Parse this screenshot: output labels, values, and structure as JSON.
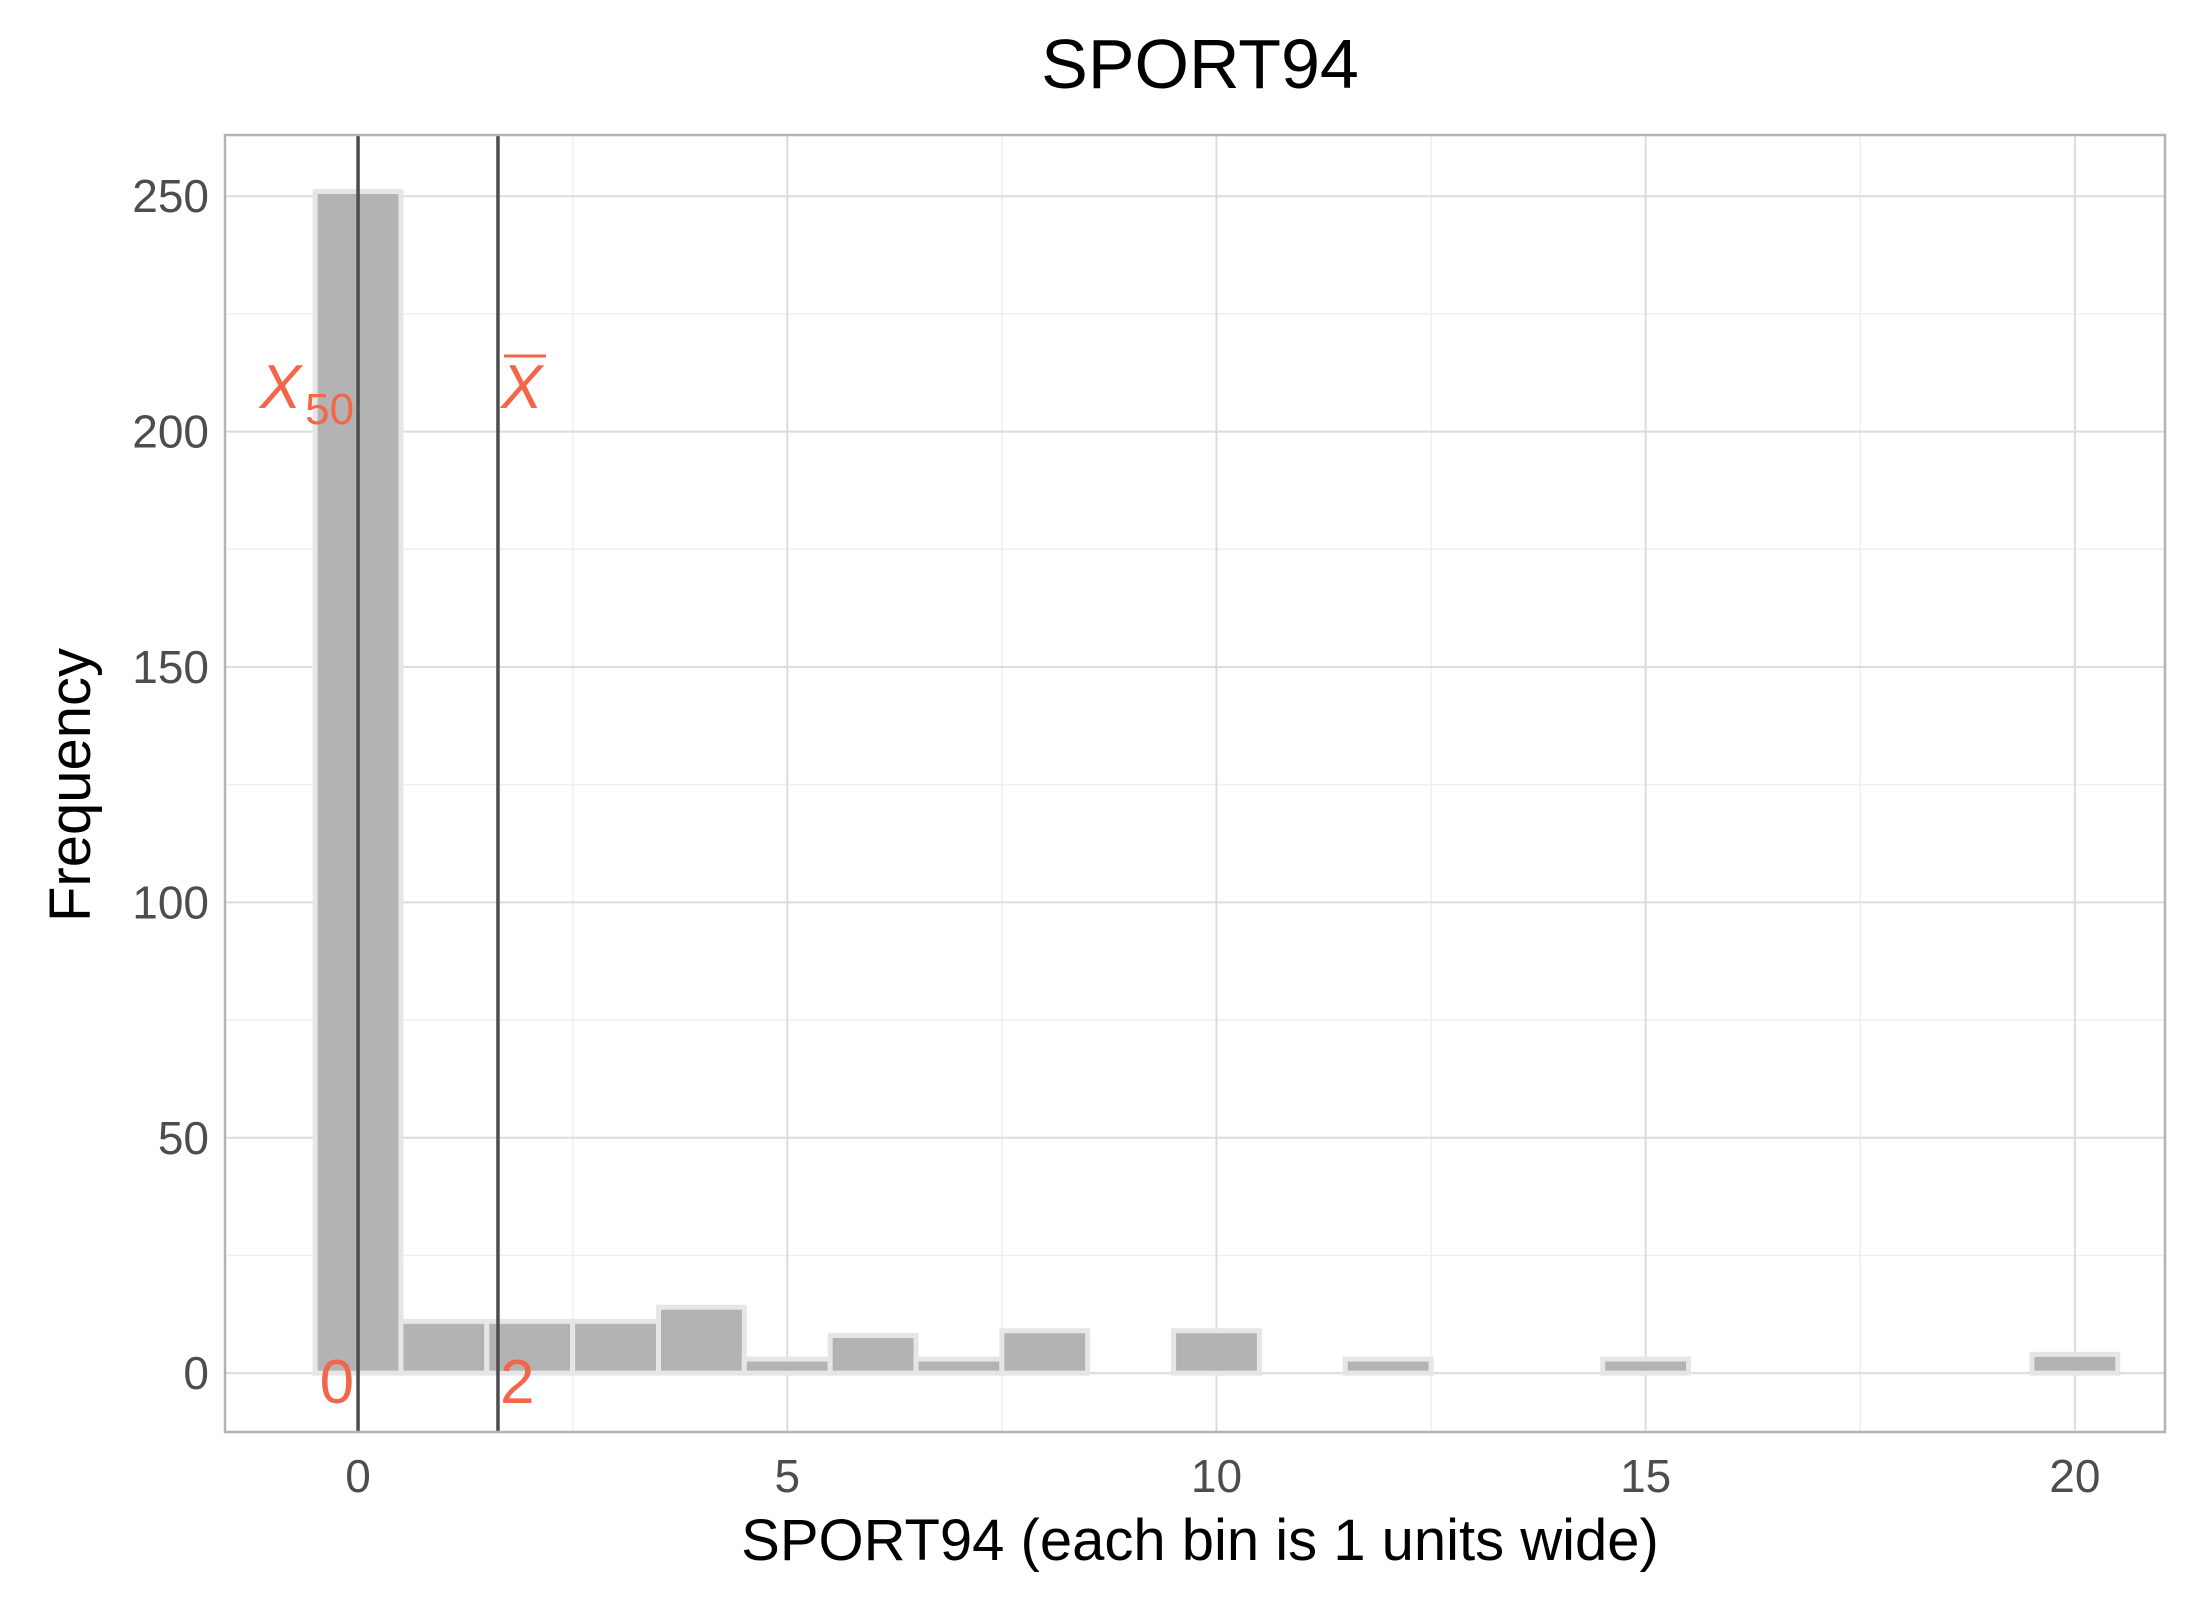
{
  "chart_data": {
    "type": "bar",
    "title": "SPORT94",
    "xlabel": "SPORT94 (each bin is 1 units wide)",
    "ylabel": "Frequency",
    "xlim": [
      -1.55,
      21.05
    ],
    "ylim": [
      -12.5,
      263
    ],
    "x_ticks": [
      0,
      5,
      10,
      15,
      20
    ],
    "y_ticks": [
      0,
      50,
      100,
      150,
      200,
      250
    ],
    "bin_width": 1,
    "bins": [
      {
        "x": 0,
        "count": 251
      },
      {
        "x": 1,
        "count": 11
      },
      {
        "x": 2,
        "count": 11
      },
      {
        "x": 3,
        "count": 11
      },
      {
        "x": 4,
        "count": 14
      },
      {
        "x": 5,
        "count": 3
      },
      {
        "x": 6,
        "count": 8
      },
      {
        "x": 7,
        "count": 3
      },
      {
        "x": 8,
        "count": 9
      },
      {
        "x": 9,
        "count": 0
      },
      {
        "x": 10,
        "count": 9
      },
      {
        "x": 11,
        "count": 0
      },
      {
        "x": 12,
        "count": 3
      },
      {
        "x": 13,
        "count": 0
      },
      {
        "x": 14,
        "count": 0
      },
      {
        "x": 15,
        "count": 3
      },
      {
        "x": 16,
        "count": 0
      },
      {
        "x": 17,
        "count": 0
      },
      {
        "x": 18,
        "count": 0
      },
      {
        "x": 19,
        "count": 0
      },
      {
        "x": 20,
        "count": 4
      }
    ],
    "reference_lines": [
      {
        "stat": "median",
        "symbol": "X",
        "subscript": "50",
        "x": 0,
        "value_label": "0"
      },
      {
        "stat": "mean",
        "symbol": "X",
        "overline": true,
        "x": 1.63,
        "value_label": "2"
      }
    ],
    "grid": true,
    "colors": {
      "bar_fill": "#b3b3b3",
      "bar_outline": "#e6e6e6",
      "reference_line": "#4d4d4d",
      "annotation": "#f4664a",
      "grid_major": "#dcdcdc",
      "grid_minor": "#efefef",
      "panel_border": "#b3b3b3"
    }
  }
}
